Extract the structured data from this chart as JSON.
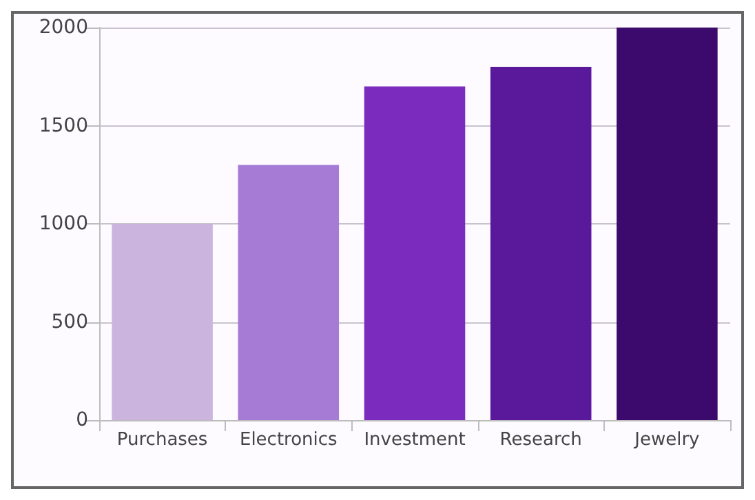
{
  "chart_data": {
    "type": "bar",
    "categories": [
      "Purchases",
      "Electronics",
      "Investment",
      "Research",
      "Jewelry"
    ],
    "values": [
      1000,
      1300,
      1700,
      1800,
      2000
    ],
    "colors": [
      "#cbb5df",
      "#a67bd6",
      "#7b2cbf",
      "#5a189a",
      "#3c096c"
    ],
    "ylim": [
      0,
      2000
    ],
    "yticks": [
      0,
      500,
      1000,
      1500,
      2000
    ],
    "grid": "y"
  }
}
